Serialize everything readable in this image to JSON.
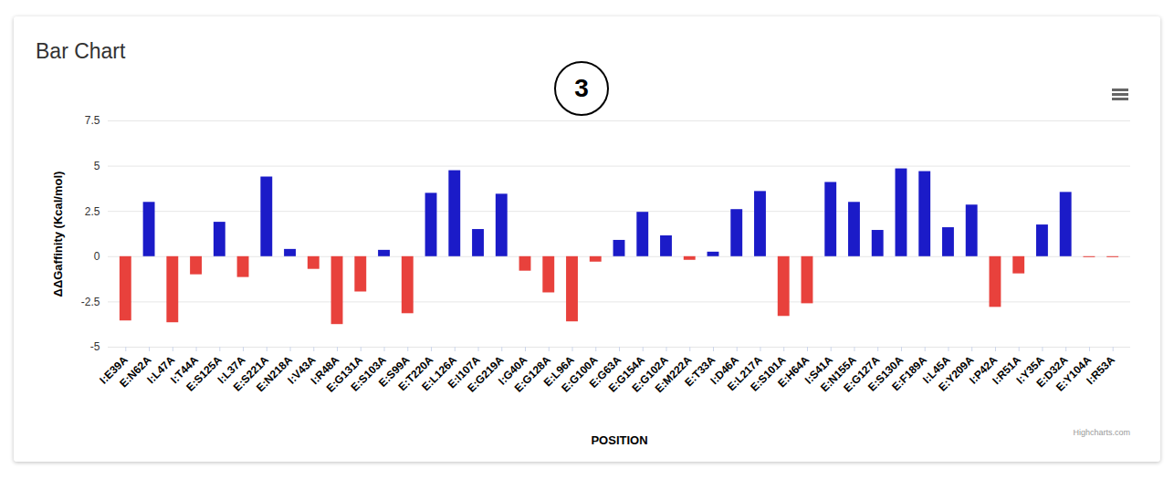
{
  "chart_data": {
    "type": "bar",
    "title": "Bar Chart",
    "annotations": [
      "3"
    ],
    "credit": "Highcharts.com",
    "x_label": "POSITION",
    "y_label": "ΔΔGaffinity (Kcal/mol)",
    "categories": [
      "I:E39A",
      "E:N62A",
      "I:L47A",
      "I:T44A",
      "E:S125A",
      "I:L37A",
      "E:S221A",
      "E:N218A",
      "I:V43A",
      "I:R48A",
      "E:G131A",
      "E:S103A",
      "E:S99A",
      "E:T220A",
      "E:L126A",
      "E:I107A",
      "E:G219A",
      "I:G40A",
      "E:G128A",
      "E:L96A",
      "E:G100A",
      "E:G63A",
      "E:G154A",
      "E:G102A",
      "E:M222A",
      "E:T33A",
      "I:D46A",
      "E:L217A",
      "E:S101A",
      "E:H64A",
      "I:S41A",
      "E:N155A",
      "E:G127A",
      "E:S130A",
      "E:F189A",
      "I:L45A",
      "E:Y209A",
      "I:P42A",
      "I:R51A",
      "I:Y35A",
      "E:D32A",
      "E:Y104A",
      "I:R53A"
    ],
    "values": [
      -3.55,
      3.0,
      -3.65,
      -1.0,
      1.9,
      -1.15,
      4.4,
      0.4,
      -0.7,
      -3.75,
      -1.95,
      0.35,
      -3.15,
      3.5,
      4.75,
      1.5,
      3.45,
      -0.8,
      -2.0,
      -3.6,
      -0.3,
      0.9,
      2.45,
      1.15,
      -0.2,
      0.25,
      2.6,
      3.6,
      -3.3,
      -2.6,
      4.1,
      3.0,
      1.45,
      4.85,
      4.7,
      1.6,
      2.85,
      -2.8,
      -0.95,
      1.75,
      3.55,
      -0.05,
      -0.05
    ],
    "colors": [
      "#e8413c",
      "#1b1bc8",
      "#e8413c",
      "#e8413c",
      "#1b1bc8",
      "#e8413c",
      "#1b1bc8",
      "#1b1bc8",
      "#e8413c",
      "#e8413c",
      "#e8413c",
      "#1b1bc8",
      "#e8413c",
      "#1b1bc8",
      "#1b1bc8",
      "#1b1bc8",
      "#1b1bc8",
      "#e8413c",
      "#e8413c",
      "#e8413c",
      "#e8413c",
      "#1b1bc8",
      "#1b1bc8",
      "#1b1bc8",
      "#e8413c",
      "#1b1bc8",
      "#1b1bc8",
      "#1b1bc8",
      "#e8413c",
      "#e8413c",
      "#1b1bc8",
      "#1b1bc8",
      "#1b1bc8",
      "#1b1bc8",
      "#1b1bc8",
      "#1b1bc8",
      "#1b1bc8",
      "#e8413c",
      "#e8413c",
      "#1b1bc8",
      "#1b1bc8",
      "#e8413c",
      "#e8413c"
    ],
    "ylim": [
      -5,
      7.5
    ],
    "yticks": [
      -5,
      -2.5,
      0,
      2.5,
      5,
      7.5
    ],
    "grid": true
  }
}
